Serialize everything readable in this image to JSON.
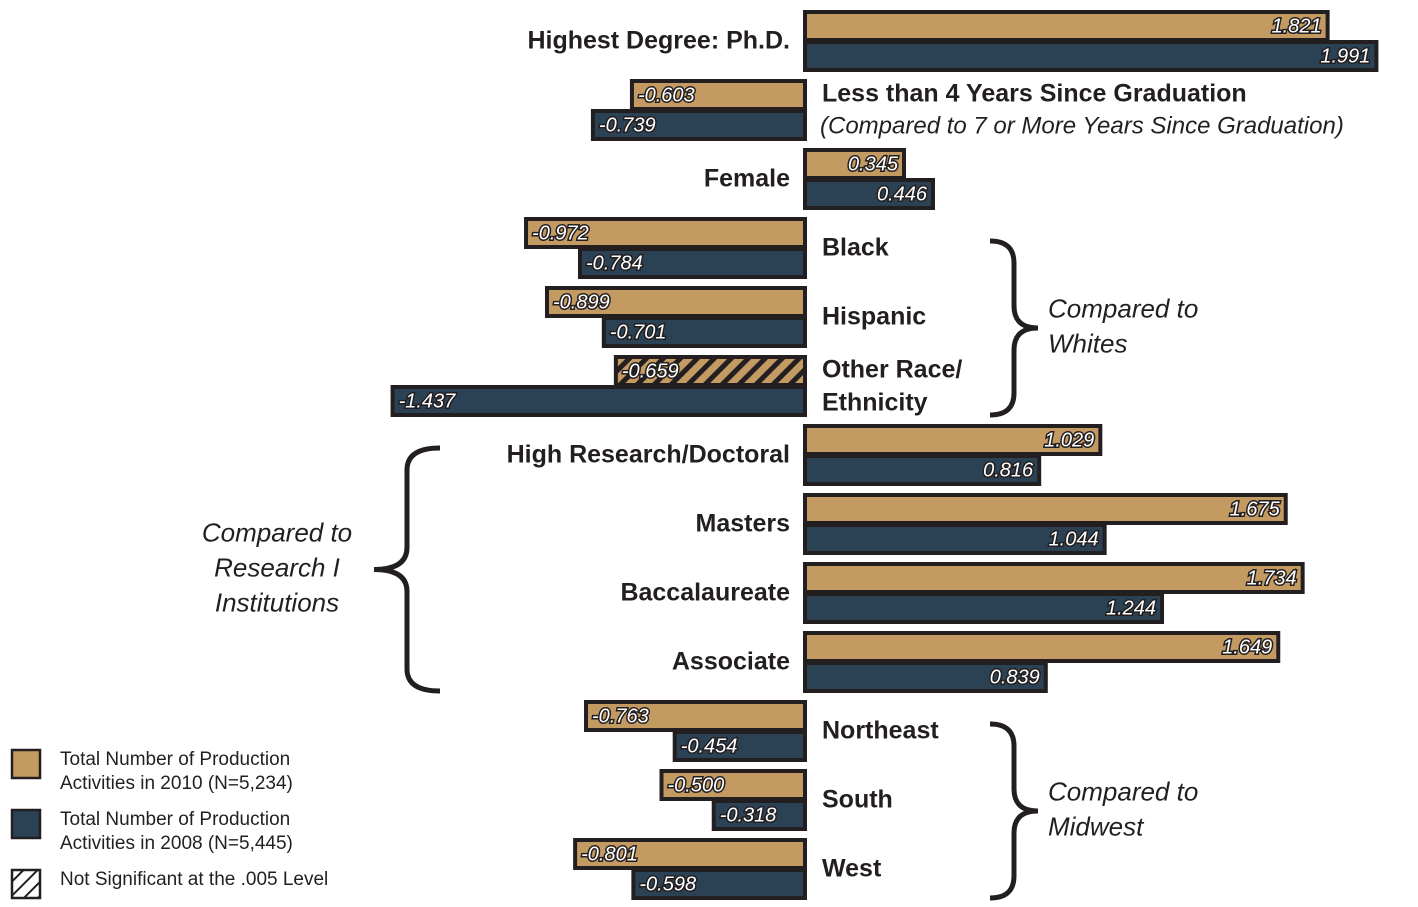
{
  "chart_data": {
    "type": "bar",
    "orientation": "horizontal",
    "categories": [
      [
        "Highest Degree: Ph.D."
      ],
      [
        "Less than 4 Years Since Graduation"
      ],
      [
        "Female"
      ],
      [
        "Black"
      ],
      [
        "Hispanic"
      ],
      [
        "Other Race/",
        "Ethnicity"
      ],
      [
        "High Research/Doctoral"
      ],
      [
        "Masters"
      ],
      [
        "Baccalaureate"
      ],
      [
        "Associate"
      ],
      [
        "Northeast"
      ],
      [
        "South"
      ],
      [
        "West"
      ]
    ],
    "series": [
      {
        "name": "Total Number of Production Activities in 2010 (N=5,234)",
        "color": "#c49a63",
        "values": [
          1.821,
          -0.603,
          0.345,
          -0.972,
          -0.899,
          -0.659,
          1.029,
          1.675,
          1.734,
          1.649,
          -0.763,
          -0.5,
          -0.801
        ],
        "value_labels": [
          "1.821",
          "-0.603",
          "0.345",
          "-0.972",
          "-0.899",
          "-0.659",
          "1.029",
          "1.675",
          "1.734",
          "1.649",
          "-0.763",
          "-0.500",
          "-0.801"
        ],
        "not_significant": [
          false,
          false,
          false,
          false,
          false,
          true,
          false,
          false,
          false,
          false,
          false,
          false,
          false
        ]
      },
      {
        "name": "Total Number of Production Activities in 2008 (N=5,445)",
        "color": "#2b4255",
        "values": [
          1.991,
          -0.739,
          0.446,
          -0.784,
          -0.701,
          -1.437,
          0.816,
          1.044,
          1.244,
          0.839,
          -0.454,
          -0.318,
          -0.598
        ],
        "value_labels": [
          "1.991",
          "-0.739",
          "0.446",
          "-0.784",
          "-0.701",
          "-1.437",
          "0.816",
          "1.044",
          "1.244",
          "0.839",
          "-0.454",
          "-0.318",
          "-0.598"
        ],
        "not_significant": [
          false,
          false,
          false,
          false,
          false,
          false,
          false,
          false,
          false,
          false,
          false,
          false,
          false
        ]
      }
    ],
    "not_significant_label": "Not Significant at the .005 Level",
    "annotations": [
      {
        "text": [
          "(Compared to 7 or More Years Since Graduation)"
        ],
        "categories": [
          1,
          1
        ],
        "bracket": false
      },
      {
        "text": [
          "Compared to",
          "Whites"
        ],
        "categories": [
          3,
          5
        ],
        "bracket": true
      },
      {
        "text": [
          "Compared to",
          "Research I",
          "Institutions"
        ],
        "categories": [
          6,
          9
        ],
        "bracket": true
      },
      {
        "text": [
          "Compared to",
          "Midwest"
        ],
        "categories": [
          10,
          12
        ],
        "bracket": true
      }
    ]
  }
}
